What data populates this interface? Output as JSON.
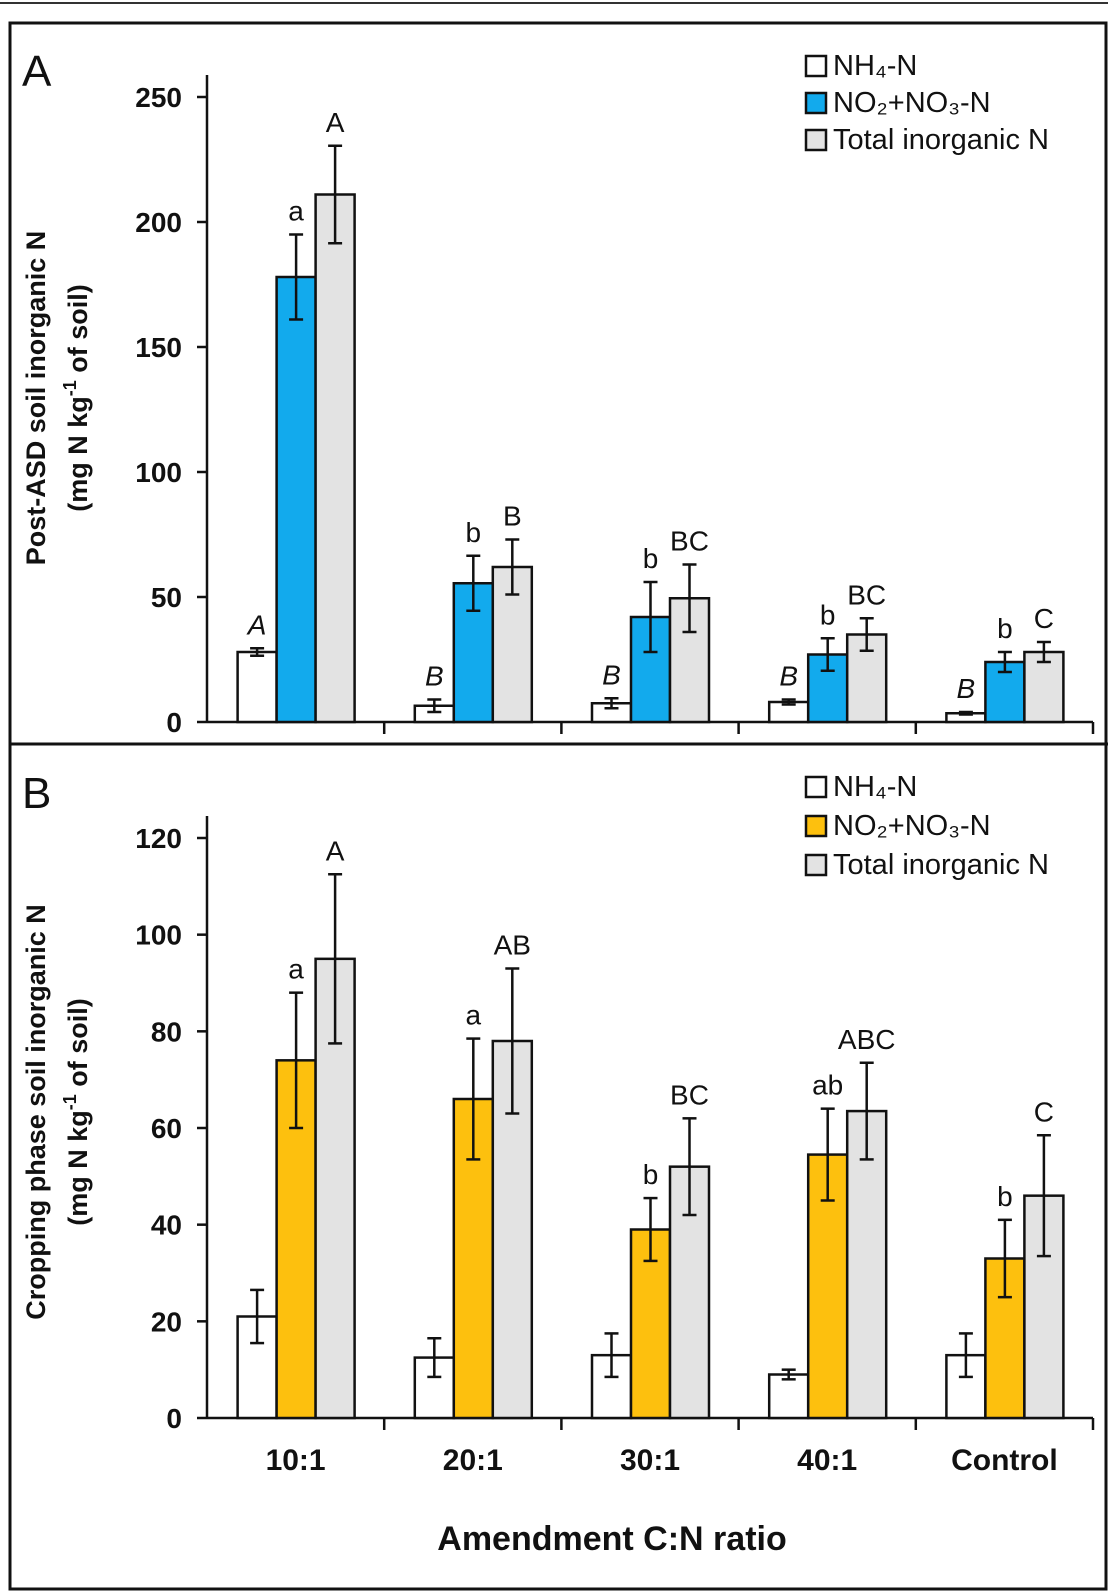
{
  "figure": {
    "x_axis_title": "Amendment C:N ratio"
  },
  "chart_data": [
    {
      "type": "bar",
      "panel_label": "A",
      "ylabel_line1": "Post-ASD soil inorganic N",
      "ylabel_line2_prefix": "(mg N kg",
      "ylabel_line2_sup": "-1",
      "ylabel_line2_suffix": " of soil)",
      "ylim": [
        0,
        250
      ],
      "yticks": [
        0,
        50,
        100,
        150,
        200,
        250
      ],
      "categories": [
        "10:1",
        "20:1",
        "30:1",
        "40:1",
        "Control"
      ],
      "show_category_labels": false,
      "legend_position": "top-right",
      "series": [
        {
          "name": "NH₄-N",
          "color": "#ffffff",
          "values": [
            28,
            6.5,
            7.5,
            8,
            3.5
          ],
          "errors": [
            1.5,
            2.5,
            2,
            1,
            0.5
          ],
          "letters": [
            "A",
            "B",
            "B",
            "B",
            "B"
          ],
          "italic_letters": true
        },
        {
          "name": "NO₂+NO₃-N",
          "color": "#12aaed",
          "values": [
            178,
            55.5,
            42,
            27,
            24
          ],
          "errors": [
            17,
            11,
            14,
            6.5,
            4
          ],
          "letters": [
            "a",
            "b",
            "b",
            "b",
            "b"
          ],
          "italic_letters": false
        },
        {
          "name": "Total inorganic N",
          "color": "#e3e3e3",
          "values": [
            211,
            62,
            49.5,
            35,
            28
          ],
          "errors": [
            19.5,
            11,
            13.5,
            6.5,
            4
          ],
          "letters": [
            "A",
            "B",
            "BC",
            "BC",
            "C"
          ],
          "italic_letters": false
        }
      ]
    },
    {
      "type": "bar",
      "panel_label": "B",
      "ylabel_line1": "Cropping phase soil inorganic N",
      "ylabel_line2_prefix": "(mg N kg",
      "ylabel_line2_sup": "-1",
      "ylabel_line2_suffix": " of soil)",
      "ylim": [
        0,
        120
      ],
      "yticks": [
        0,
        20,
        40,
        60,
        80,
        100,
        120
      ],
      "categories": [
        "10:1",
        "20:1",
        "30:1",
        "40:1",
        "Control"
      ],
      "show_category_labels": true,
      "legend_position": "top-right",
      "series": [
        {
          "name": "NH₄-N",
          "color": "#ffffff",
          "values": [
            21,
            12.5,
            13,
            9,
            13
          ],
          "errors": [
            5.5,
            4,
            4.5,
            1,
            4.5
          ],
          "letters": [
            "",
            "",
            "",
            "",
            ""
          ],
          "italic_letters": false
        },
        {
          "name": "NO₂+NO₃-N",
          "color": "#fdc00e",
          "values": [
            74,
            66,
            39,
            54.5,
            33
          ],
          "errors": [
            14,
            12.5,
            6.5,
            9.5,
            8
          ],
          "letters": [
            "a",
            "a",
            "b",
            "ab",
            "b"
          ],
          "italic_letters": false
        },
        {
          "name": "Total inorganic N",
          "color": "#e3e3e3",
          "values": [
            95,
            78,
            52,
            63.5,
            46
          ],
          "errors": [
            17.5,
            15,
            10,
            10,
            12.5
          ],
          "letters": [
            "A",
            "AB",
            "BC",
            "ABC",
            "C"
          ],
          "italic_letters": false
        }
      ]
    }
  ]
}
